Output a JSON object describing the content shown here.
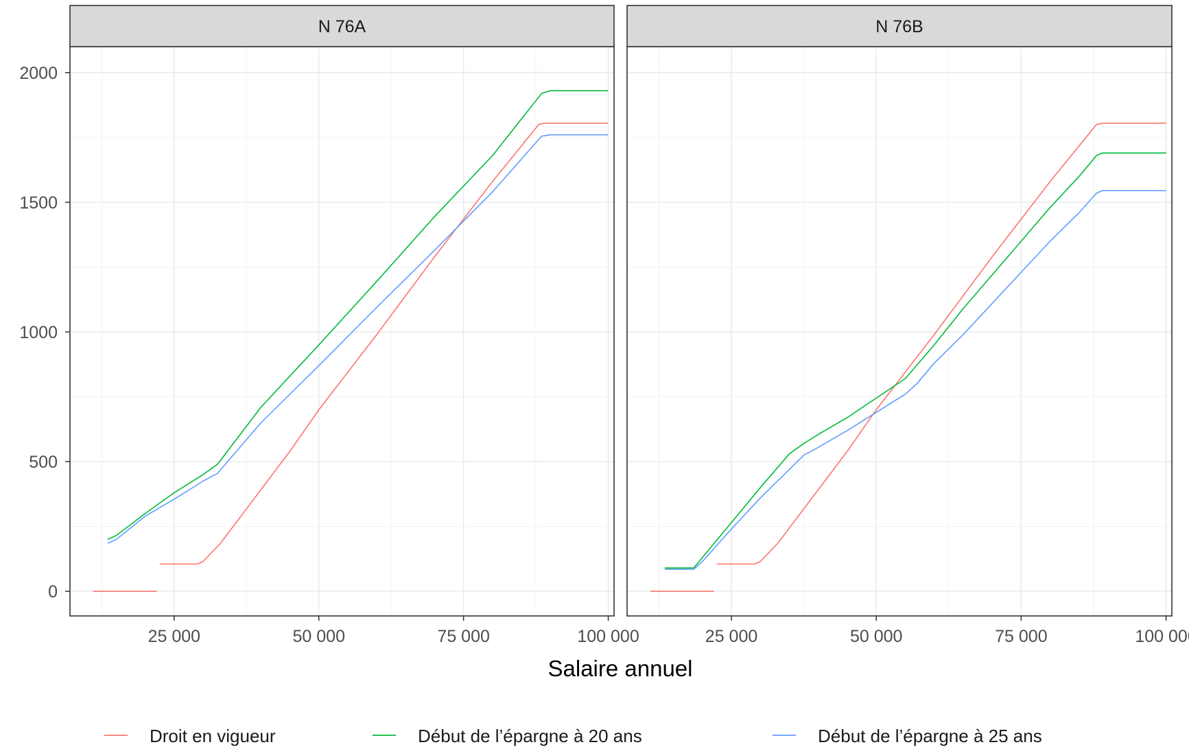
{
  "chart_data": {
    "type": "line",
    "xlabel": "Salaire annuel",
    "ylabel": "",
    "xlim": [
      7000,
      101000
    ],
    "ylim": [
      -95,
      2100
    ],
    "x_ticks": [
      25000,
      50000,
      75000,
      100000
    ],
    "x_tick_labels": [
      "25 000",
      "50 000",
      "75 000",
      "100 000"
    ],
    "y_ticks": [
      0,
      500,
      1000,
      1500,
      2000
    ],
    "y_tick_labels": [
      "0",
      "500",
      "1000",
      "1500",
      "2000"
    ],
    "grid": true,
    "legend_position": "bottom",
    "legend": [
      {
        "name": "Droit en vigueur",
        "color": "#F8766D"
      },
      {
        "name": "Début de l’épargne à 20 ans",
        "color": "#00BA38"
      },
      {
        "name": "Début de l’épargne à 25 ans",
        "color": "#619CFF"
      }
    ],
    "panels": [
      {
        "title": "N 76A",
        "series": [
          {
            "name": "Droit en vigueur",
            "color": "#F8766D",
            "segments": [
              [
                [
                  11000,
                  0
                ],
                [
                  22000,
                  0
                ]
              ],
              [
                [
                  22500,
                  105
                ],
                [
                  29000,
                  105
                ],
                [
                  30000,
                  115
                ],
                [
                  33000,
                  185
                ],
                [
                  45000,
                  540
                ],
                [
                  50000,
                  700
                ],
                [
                  60000,
                  990
                ],
                [
                  70000,
                  1290
                ],
                [
                  80000,
                  1580
                ],
                [
                  88000,
                  1800
                ],
                [
                  89000,
                  1805
                ],
                [
                  100000,
                  1805
                ]
              ]
            ]
          },
          {
            "name": "Début de l’épargne à 20 ans",
            "color": "#00BA38",
            "segments": [
              [
                [
                  13500,
                  200
                ],
                [
                  15000,
                  215
                ],
                [
                  20000,
                  300
                ],
                [
                  25000,
                  380
                ],
                [
                  30000,
                  450
                ],
                [
                  32500,
                  490
                ],
                [
                  40000,
                  710
                ],
                [
                  50000,
                  950
                ],
                [
                  60000,
                  1195
                ],
                [
                  70000,
                  1445
                ],
                [
                  80000,
                  1680
                ],
                [
                  88500,
                  1920
                ],
                [
                  90000,
                  1930
                ],
                [
                  100000,
                  1930
                ]
              ]
            ]
          },
          {
            "name": "Début de l’épargne à 25 ans",
            "color": "#619CFF",
            "segments": [
              [
                [
                  13500,
                  185
                ],
                [
                  15000,
                  200
                ],
                [
                  20000,
                  290
                ],
                [
                  25000,
                  355
                ],
                [
                  30000,
                  425
                ],
                [
                  32500,
                  455
                ],
                [
                  40000,
                  650
                ],
                [
                  50000,
                  870
                ],
                [
                  60000,
                  1095
                ],
                [
                  70000,
                  1315
                ],
                [
                  80000,
                  1540
                ],
                [
                  88500,
                  1755
                ],
                [
                  90000,
                  1760
                ],
                [
                  100000,
                  1760
                ]
              ]
            ]
          }
        ]
      },
      {
        "title": "N 76B",
        "series": [
          {
            "name": "Droit en vigueur",
            "color": "#F8766D",
            "segments": [
              [
                [
                  11000,
                  0
                ],
                [
                  22000,
                  0
                ]
              ],
              [
                [
                  22500,
                  105
                ],
                [
                  29000,
                  105
                ],
                [
                  30000,
                  115
                ],
                [
                  33000,
                  185
                ],
                [
                  45000,
                  540
                ],
                [
                  50000,
                  700
                ],
                [
                  60000,
                  990
                ],
                [
                  70000,
                  1290
                ],
                [
                  80000,
                  1580
                ],
                [
                  88000,
                  1800
                ],
                [
                  89000,
                  1805
                ],
                [
                  100000,
                  1805
                ]
              ]
            ]
          },
          {
            "name": "Début de l’épargne à 20 ans",
            "color": "#00BA38",
            "segments": [
              [
                [
                  13500,
                  90
                ],
                [
                  18500,
                  90
                ],
                [
                  20000,
                  130
                ],
                [
                  25000,
                  265
                ],
                [
                  30000,
                  400
                ],
                [
                  35000,
                  530
                ],
                [
                  37500,
                  570
                ],
                [
                  40000,
                  605
                ],
                [
                  45000,
                  670
                ],
                [
                  50000,
                  745
                ],
                [
                  55000,
                  820
                ],
                [
                  60000,
                  950
                ],
                [
                  65000,
                  1090
                ],
                [
                  70000,
                  1220
                ],
                [
                  75000,
                  1350
                ],
                [
                  80000,
                  1480
                ],
                [
                  85000,
                  1600
                ],
                [
                  88000,
                  1680
                ],
                [
                  89000,
                  1690
                ],
                [
                  100000,
                  1690
                ]
              ]
            ]
          },
          {
            "name": "Début de l’épargne à 25 ans",
            "color": "#619CFF",
            "segments": [
              [
                [
                  13500,
                  85
                ],
                [
                  18500,
                  85
                ],
                [
                  20000,
                  115
                ],
                [
                  25000,
                  240
                ],
                [
                  30000,
                  360
                ],
                [
                  35000,
                  470
                ],
                [
                  37500,
                  525
                ],
                [
                  40000,
                  555
                ],
                [
                  45000,
                  620
                ],
                [
                  50000,
                  690
                ],
                [
                  55000,
                  760
                ],
                [
                  57000,
                  800
                ],
                [
                  60000,
                  880
                ],
                [
                  65000,
                  990
                ],
                [
                  70000,
                  1110
                ],
                [
                  75000,
                  1230
                ],
                [
                  80000,
                  1350
                ],
                [
                  85000,
                  1460
                ],
                [
                  88000,
                  1535
                ],
                [
                  89000,
                  1545
                ],
                [
                  100000,
                  1545
                ]
              ]
            ]
          }
        ]
      }
    ]
  }
}
